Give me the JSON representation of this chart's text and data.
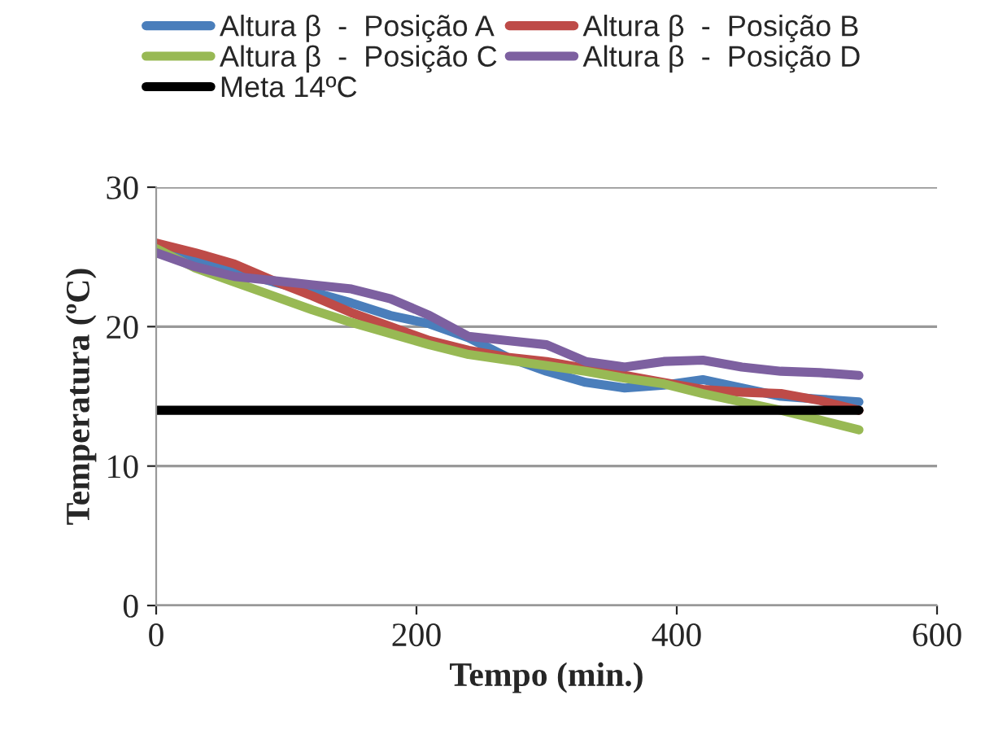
{
  "chart_data": {
    "type": "line",
    "xlabel": "Tempo (min.)",
    "ylabel": "Temperatura (ºC)",
    "x": [
      0,
      30,
      60,
      90,
      120,
      150,
      180,
      210,
      240,
      270,
      300,
      330,
      360,
      390,
      420,
      450,
      480,
      510,
      540
    ],
    "series": [
      {
        "name": "Altura β  -  Posição A",
        "color": "#4a7ebb",
        "values": [
          25.5,
          24.8,
          24.0,
          23.2,
          22.5,
          21.7,
          20.8,
          20.2,
          19.2,
          17.8,
          16.8,
          16.0,
          15.6,
          15.8,
          16.2,
          15.6,
          15.0,
          14.8,
          14.6
        ]
      },
      {
        "name": "Altura β  -  Posição B",
        "color": "#be4b48",
        "values": [
          26.0,
          25.3,
          24.5,
          23.3,
          22.2,
          21.0,
          20.0,
          19.0,
          18.3,
          17.8,
          17.5,
          17.0,
          16.5,
          16.0,
          15.5,
          15.3,
          15.2,
          14.7,
          14.0
        ]
      },
      {
        "name": "Altura β  -  Posição C",
        "color": "#98b954",
        "values": [
          25.6,
          24.2,
          23.2,
          22.2,
          21.2,
          20.3,
          19.5,
          18.7,
          18.0,
          17.6,
          17.2,
          16.8,
          16.3,
          15.9,
          15.2,
          14.6,
          14.0,
          13.3,
          12.6
        ]
      },
      {
        "name": "Altura β  -  Posição D",
        "color": "#7d60a0",
        "values": [
          25.3,
          24.3,
          23.6,
          23.3,
          23.0,
          22.7,
          22.0,
          20.8,
          19.3,
          19.0,
          18.7,
          17.5,
          17.1,
          17.5,
          17.6,
          17.1,
          16.8,
          16.7,
          16.5
        ]
      },
      {
        "name": "Meta 14ºC",
        "color": "#000000",
        "values": [
          14,
          14,
          14,
          14,
          14,
          14,
          14,
          14,
          14,
          14,
          14,
          14,
          14,
          14,
          14,
          14,
          14,
          14,
          14
        ]
      }
    ],
    "xlim": [
      0,
      600
    ],
    "xticks": [
      0,
      200,
      400,
      600
    ],
    "ylim": [
      0,
      30
    ],
    "yticks": [
      0,
      10,
      20,
      30
    ],
    "grid": "y",
    "legend": "top",
    "line_style": "solid",
    "marker": "none"
  }
}
